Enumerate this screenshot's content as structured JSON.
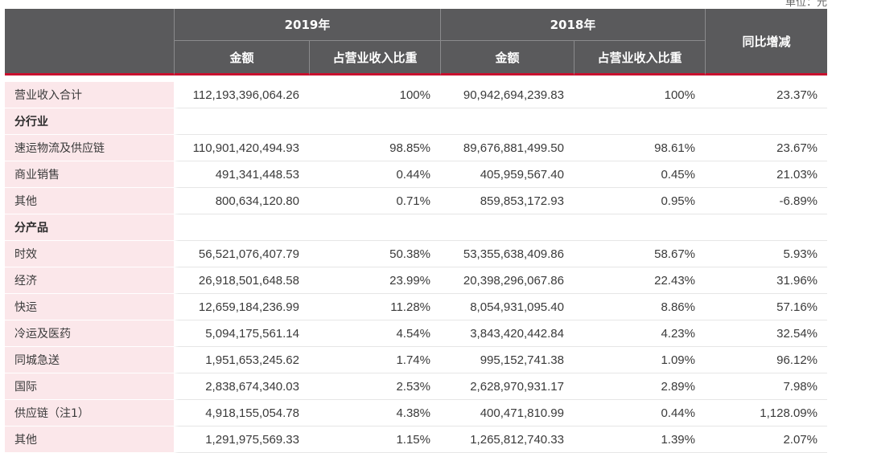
{
  "unit_label": "单位：元",
  "header": {
    "year_2019": "2019年",
    "year_2018": "2018年",
    "yoy": "同比增减",
    "amount_2019": "金额",
    "share_2019": "占营业收入比重",
    "amount_2018": "金额",
    "share_2018": "占营业收入比重"
  },
  "rows": [
    {
      "name": "营业收入合计",
      "a2019": "112,193,396,064.26",
      "s2019": "100%",
      "a2018": "90,942,694,239.83",
      "s2018": "100%",
      "yoy": "23.37%"
    },
    {
      "name": "分行业",
      "a2019": "",
      "s2019": "",
      "a2018": "",
      "s2018": "",
      "yoy": ""
    },
    {
      "name": "速运物流及供应链",
      "a2019": "110,901,420,494.93",
      "s2019": "98.85%",
      "a2018": "89,676,881,499.50",
      "s2018": "98.61%",
      "yoy": "23.67%"
    },
    {
      "name": "商业销售",
      "a2019": "491,341,448.53",
      "s2019": "0.44%",
      "a2018": "405,959,567.40",
      "s2018": "0.45%",
      "yoy": "21.03%"
    },
    {
      "name": "其他",
      "a2019": "800,634,120.80",
      "s2019": "0.71%",
      "a2018": "859,853,172.93",
      "s2018": "0.95%",
      "yoy": "-6.89%"
    },
    {
      "name": "分产品",
      "a2019": "",
      "s2019": "",
      "a2018": "",
      "s2018": "",
      "yoy": ""
    },
    {
      "name": "时效",
      "a2019": "56,521,076,407.79",
      "s2019": "50.38%",
      "a2018": "53,355,638,409.86",
      "s2018": "58.67%",
      "yoy": "5.93%"
    },
    {
      "name": "经济",
      "a2019": "26,918,501,648.58",
      "s2019": "23.99%",
      "a2018": "20,398,296,067.86",
      "s2018": "22.43%",
      "yoy": "31.96%"
    },
    {
      "name": "快运",
      "a2019": "12,659,184,236.99",
      "s2019": "11.28%",
      "a2018": "8,054,931,095.40",
      "s2018": "8.86%",
      "yoy": "57.16%"
    },
    {
      "name": "冷运及医药",
      "a2019": "5,094,175,561.14",
      "s2019": "4.54%",
      "a2018": "3,843,420,442.84",
      "s2018": "4.23%",
      "yoy": "32.54%"
    },
    {
      "name": "同城急送",
      "a2019": "1,951,653,245.62",
      "s2019": "1.74%",
      "a2018": "995,152,741.38",
      "s2018": "1.09%",
      "yoy": "96.12%"
    },
    {
      "name": "国际",
      "a2019": "2,838,674,340.03",
      "s2019": "2.53%",
      "a2018": "2,628,970,931.17",
      "s2018": "2.89%",
      "yoy": "7.98%"
    },
    {
      "name": "供应链（注1）",
      "a2019": "4,918,155,054.78",
      "s2019": "4.38%",
      "a2018": "400,471,810.99",
      "s2018": "0.44%",
      "yoy": "1,128.09%"
    },
    {
      "name": "其他",
      "a2019": "1,291,975,569.33",
      "s2019": "1.15%",
      "a2018": "1,265,812,740.33",
      "s2018": "1.39%",
      "yoy": "2.07%"
    }
  ],
  "section_rows": [
    1,
    5
  ]
}
